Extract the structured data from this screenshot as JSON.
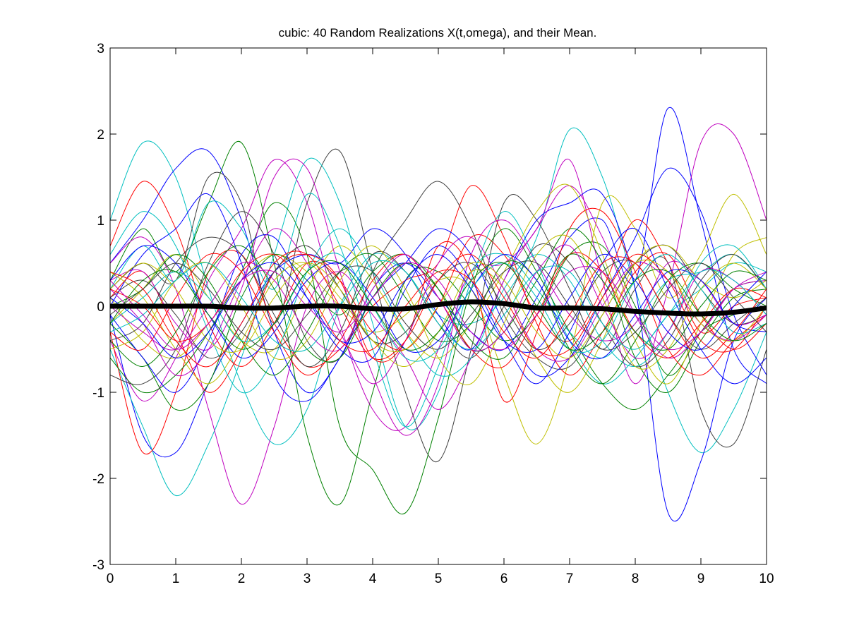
{
  "chart_data": {
    "type": "line",
    "title": "cubic: 40 Random Realizations X(t,omega), and their Mean.",
    "xlabel": "",
    "ylabel": "",
    "xlim": [
      0,
      10
    ],
    "ylim": [
      -3,
      3
    ],
    "x_ticks": [
      {
        "value": 0,
        "label": "0"
      },
      {
        "value": 1,
        "label": "1"
      },
      {
        "value": 2,
        "label": "2"
      },
      {
        "value": 3,
        "label": "3"
      },
      {
        "value": 4,
        "label": "4"
      },
      {
        "value": 5,
        "label": "5"
      },
      {
        "value": 6,
        "label": "6"
      },
      {
        "value": 7,
        "label": "7"
      },
      {
        "value": 8,
        "label": "8"
      },
      {
        "value": 9,
        "label": "9"
      },
      {
        "value": 10,
        "label": "10"
      }
    ],
    "y_ticks": [
      {
        "value": -3,
        "label": "-3"
      },
      {
        "value": -2,
        "label": "-2"
      },
      {
        "value": -1,
        "label": "-1"
      },
      {
        "value": 0,
        "label": "0"
      },
      {
        "value": 1,
        "label": "1"
      },
      {
        "value": 2,
        "label": "2"
      },
      {
        "value": 3,
        "label": "3"
      }
    ],
    "grid": false,
    "legend": "none",
    "x": [
      0,
      0.5,
      1,
      1.5,
      2,
      2.5,
      3,
      3.5,
      4,
      4.5,
      5,
      5.5,
      6,
      6.5,
      7,
      7.5,
      8,
      8.5,
      9,
      9.5,
      10
    ],
    "series": [
      {
        "color": "#00bfbf",
        "values": [
          1.0,
          1.9,
          1.5,
          0.2,
          -0.9,
          -1.6,
          -1.2,
          0.0,
          0.6,
          0.4,
          -0.1,
          -0.2,
          0.1,
          0.8,
          2.05,
          1.5,
          0.2,
          -1.0,
          -1.7,
          -1.2,
          -0.3
        ]
      },
      {
        "color": "#0000ff",
        "values": [
          0.5,
          1.0,
          1.6,
          1.8,
          1.0,
          -0.3,
          -1.0,
          -0.6,
          0.2,
          0.5,
          0.1,
          -0.3,
          -0.5,
          0.1,
          0.8,
          1.0,
          0.3,
          2.3,
          1.0,
          -0.5,
          -0.9
        ]
      },
      {
        "color": "#ff0000",
        "values": [
          0.7,
          1.45,
          0.9,
          -0.2,
          -0.7,
          -0.2,
          0.5,
          0.3,
          -0.3,
          -0.5,
          0.0,
          0.8,
          0.6,
          -0.1,
          -0.4,
          0.2,
          1.0,
          0.5,
          -0.3,
          0.0,
          0.1
        ]
      },
      {
        "color": "#008000",
        "values": [
          0.3,
          0.9,
          0.4,
          1.2,
          1.9,
          0.5,
          -1.5,
          -2.3,
          -1.0,
          0.3,
          0.4,
          0.0,
          -0.4,
          -0.1,
          0.6,
          0.7,
          0.0,
          -0.8,
          -0.3,
          0.2,
          0.3
        ]
      },
      {
        "color": "#bf00bf",
        "values": [
          -0.4,
          -1.1,
          -0.6,
          0.3,
          0.9,
          1.7,
          1.2,
          -0.2,
          -1.2,
          -1.4,
          -0.5,
          0.4,
          0.5,
          0.9,
          1.7,
          0.3,
          -0.9,
          0.2,
          1.9,
          2.0,
          1.0
        ]
      },
      {
        "color": "#bfbf00",
        "values": [
          0.1,
          -0.4,
          -0.6,
          -0.2,
          0.3,
          0.6,
          0.4,
          0.0,
          -0.3,
          -0.1,
          0.3,
          0.2,
          -0.8,
          -1.6,
          -0.6,
          1.2,
          0.9,
          0.1,
          0.6,
          1.3,
          0.6
        ]
      },
      {
        "color": "#404040",
        "values": [
          0.2,
          0.5,
          0.3,
          1.5,
          1.2,
          -0.2,
          1.2,
          1.8,
          0.4,
          -1.0,
          -1.8,
          -0.5,
          1.2,
          1.0,
          0.2,
          -0.5,
          0.2,
          0.5,
          -1.2,
          -1.6,
          -0.5
        ]
      },
      {
        "color": "#0000ff",
        "values": [
          -0.1,
          -1.5,
          -1.7,
          -0.9,
          -0.2,
          0.4,
          0.6,
          0.5,
          0.9,
          0.6,
          -0.1,
          -0.5,
          0.3,
          1.0,
          1.2,
          1.3,
          0.2,
          -2.4,
          -1.8,
          -0.4,
          0.1
        ]
      },
      {
        "color": "#00bfbf",
        "values": [
          -0.5,
          -1.4,
          -2.2,
          -1.6,
          -0.6,
          0.6,
          1.7,
          1.2,
          -0.2,
          -1.4,
          -1.0,
          0.3,
          1.1,
          0.5,
          -0.4,
          -0.9,
          -0.6,
          -0.1,
          0.2,
          0.5,
          0.4
        ]
      },
      {
        "color": "#ff0000",
        "values": [
          -0.3,
          -1.7,
          -1.0,
          0.4,
          0.6,
          -0.2,
          -0.7,
          -0.5,
          0.0,
          0.3,
          0.5,
          1.4,
          0.8,
          -0.2,
          -0.8,
          -0.3,
          0.4,
          0.6,
          -0.1,
          -0.5,
          -0.2
        ]
      },
      {
        "color": "#008000",
        "values": [
          -0.6,
          -1.0,
          -0.8,
          -0.3,
          0.4,
          1.2,
          0.6,
          -1.4,
          -1.9,
          -2.4,
          -1.3,
          0.2,
          0.9,
          0.4,
          -0.3,
          -0.9,
          -1.2,
          -0.8,
          -0.3,
          -0.1,
          0.0
        ]
      },
      {
        "color": "#bf00bf",
        "values": [
          0.5,
          0.8,
          0.2,
          -1.2,
          -2.3,
          -1.4,
          0.0,
          0.4,
          -0.1,
          -0.6,
          -1.2,
          -0.6,
          0.3,
          0.9,
          1.4,
          0.8,
          -0.1,
          -0.6,
          -0.3,
          0.2,
          0.3
        ]
      },
      {
        "color": "#bfbf00",
        "values": [
          -0.2,
          0.2,
          0.6,
          0.1,
          -0.4,
          -0.5,
          0.2,
          0.7,
          0.3,
          -0.3,
          -0.6,
          -0.2,
          0.4,
          1.1,
          1.4,
          0.6,
          -0.4,
          -0.9,
          -0.2,
          0.6,
          0.8
        ]
      },
      {
        "color": "#404040",
        "values": [
          -0.8,
          -0.9,
          -0.5,
          0.5,
          1.1,
          0.6,
          -0.4,
          -0.6,
          0.4,
          1.0,
          1.45,
          0.9,
          -0.1,
          -0.6,
          -0.7,
          -0.1,
          0.5,
          0.7,
          0.2,
          -0.2,
          -0.1
        ]
      },
      {
        "color": "#0000ff",
        "values": [
          0.0,
          0.6,
          0.9,
          1.3,
          0.5,
          -0.8,
          -1.1,
          -0.6,
          0.1,
          0.5,
          0.9,
          0.6,
          -0.2,
          -0.8,
          -0.6,
          0.1,
          0.8,
          1.6,
          1.1,
          -0.1,
          -0.8
        ]
      },
      {
        "color": "#00bfbf",
        "values": [
          0.2,
          0.7,
          0.3,
          1.2,
          0.9,
          0.2,
          1.3,
          0.7,
          -0.5,
          -1.4,
          -0.7,
          0.4,
          0.6,
          0.2,
          -0.3,
          -0.6,
          -0.2,
          0.3,
          0.4,
          0.6,
          0.2
        ]
      },
      {
        "color": "#ff0000",
        "values": [
          0.1,
          0.4,
          -0.3,
          -1.0,
          -0.5,
          0.4,
          0.6,
          0.3,
          -0.6,
          -0.4,
          0.7,
          0.4,
          -1.1,
          -0.3,
          0.9,
          1.1,
          0.4,
          -0.5,
          -0.8,
          -0.4,
          -0.1
        ]
      },
      {
        "color": "#008000",
        "values": [
          -0.2,
          -0.6,
          -1.2,
          -0.9,
          0.1,
          0.6,
          0.3,
          -0.1,
          0.4,
          0.6,
          0.2,
          -0.5,
          -0.3,
          0.3,
          0.9,
          0.5,
          -0.6,
          -1.0,
          -0.4,
          0.1,
          0.2
        ]
      },
      {
        "color": "#bf00bf",
        "values": [
          0.3,
          0.4,
          -0.2,
          -0.5,
          0.2,
          1.5,
          1.6,
          0.4,
          -0.8,
          -1.5,
          -0.9,
          0.6,
          1.0,
          0.5,
          -0.1,
          -0.4,
          -0.2,
          0.5,
          0.3,
          -0.2,
          -0.1
        ]
      },
      {
        "color": "#bfbf00",
        "values": [
          0.4,
          0.1,
          -0.5,
          -0.9,
          -0.4,
          0.3,
          0.5,
          0.1,
          -0.4,
          -0.7,
          -0.3,
          0.4,
          0.2,
          -0.6,
          -1.0,
          -0.4,
          0.5,
          0.7,
          0.3,
          0.1,
          0.3
        ]
      },
      {
        "color": "#404040",
        "values": [
          -0.4,
          -0.2,
          0.5,
          0.8,
          0.6,
          -0.1,
          -0.7,
          -0.3,
          0.6,
          0.4,
          -0.2,
          -0.6,
          0.0,
          0.7,
          0.5,
          -0.2,
          -0.7,
          -0.4,
          0.3,
          0.6,
          0.2
        ]
      },
      {
        "color": "#0000ff",
        "values": [
          -0.1,
          -0.6,
          -1.0,
          -0.4,
          0.6,
          0.8,
          0.1,
          -0.5,
          -0.6,
          0.2,
          0.7,
          0.3,
          -0.4,
          -0.9,
          -0.3,
          0.5,
          0.9,
          0.2,
          -0.5,
          -0.9,
          -0.6
        ]
      },
      {
        "color": "#00bfbf",
        "values": [
          0.6,
          1.1,
          0.7,
          -0.3,
          -1.0,
          -0.6,
          0.4,
          0.9,
          0.4,
          -0.3,
          -0.8,
          -0.6,
          0.2,
          0.6,
          0.3,
          -0.4,
          -0.7,
          -0.3,
          0.5,
          0.7,
          0.2
        ]
      },
      {
        "color": "#ff0000",
        "values": [
          -0.3,
          -0.5,
          0.1,
          0.6,
          0.4,
          -0.3,
          -0.8,
          -0.4,
          0.3,
          0.6,
          0.1,
          -0.5,
          -0.7,
          -0.1,
          0.6,
          0.4,
          -0.3,
          -0.6,
          -0.2,
          0.2,
          0.1
        ]
      },
      {
        "color": "#008000",
        "values": [
          0.0,
          0.2,
          0.6,
          0.3,
          -0.4,
          -0.8,
          -0.3,
          0.4,
          0.6,
          0.1,
          -0.4,
          -0.2,
          0.5,
          0.3,
          -0.5,
          -0.9,
          -0.4,
          0.3,
          0.5,
          0.2,
          0.0
        ]
      },
      {
        "color": "#bf00bf",
        "values": [
          0.2,
          -0.2,
          -0.8,
          -0.5,
          0.3,
          0.9,
          0.5,
          -0.3,
          -0.9,
          -0.4,
          0.5,
          0.8,
          0.2,
          -0.5,
          -0.6,
          0.0,
          0.5,
          0.3,
          -0.2,
          -0.4,
          -0.1
        ]
      },
      {
        "color": "#bfbf00",
        "values": [
          -0.5,
          -0.3,
          0.3,
          0.5,
          0.0,
          -0.6,
          -0.4,
          0.3,
          0.7,
          0.2,
          -0.6,
          -0.9,
          -0.2,
          0.6,
          0.8,
          0.1,
          -0.7,
          -0.5,
          0.2,
          0.5,
          0.2
        ]
      },
      {
        "color": "#404040",
        "values": [
          0.1,
          0.3,
          -0.1,
          -0.6,
          -0.3,
          0.4,
          0.7,
          0.2,
          -0.4,
          -0.3,
          0.3,
          0.5,
          0.0,
          -0.5,
          -0.2,
          0.4,
          0.5,
          -0.1,
          -0.5,
          -0.2,
          0.1
        ]
      },
      {
        "color": "#0000ff",
        "values": [
          0.3,
          0.7,
          0.5,
          -0.1,
          -0.6,
          -0.3,
          0.3,
          0.5,
          0.1,
          -0.5,
          -0.4,
          0.2,
          0.6,
          0.3,
          -0.4,
          -0.6,
          -0.1,
          0.4,
          0.3,
          -0.2,
          -0.3
        ]
      },
      {
        "color": "#00bfbf",
        "values": [
          -0.2,
          0.1,
          0.4,
          0.1,
          -0.4,
          -0.2,
          0.4,
          0.6,
          0.0,
          -0.6,
          -0.5,
          0.2,
          0.5,
          0.1,
          -0.5,
          -0.4,
          0.3,
          0.6,
          0.2,
          -0.3,
          -0.2
        ]
      },
      {
        "color": "#ff0000",
        "values": [
          0.4,
          0.2,
          -0.4,
          -0.7,
          -0.2,
          0.5,
          0.6,
          0.0,
          -0.6,
          -0.4,
          0.3,
          0.6,
          0.1,
          -0.5,
          -0.5,
          0.1,
          0.6,
          0.3,
          -0.4,
          -0.5,
          0.0
        ]
      },
      {
        "color": "#008000",
        "values": [
          -0.4,
          -0.7,
          -0.3,
          0.4,
          0.7,
          0.2,
          -0.5,
          -0.6,
          0.1,
          0.5,
          0.2,
          -0.4,
          -0.6,
          0.0,
          0.6,
          0.3,
          -0.3,
          -0.5,
          0.0,
          0.4,
          0.3
        ]
      },
      {
        "color": "#bf00bf",
        "values": [
          0.0,
          -0.3,
          -0.5,
          0.0,
          0.5,
          0.3,
          -0.3,
          -0.5,
          0.2,
          0.6,
          0.1,
          -0.5,
          -0.3,
          0.4,
          0.7,
          0.0,
          -0.6,
          -0.3,
          0.4,
          0.3,
          -0.1
        ]
      },
      {
        "color": "#bfbf00",
        "values": [
          0.2,
          0.5,
          0.2,
          -0.4,
          -0.5,
          0.1,
          0.5,
          0.2,
          -0.4,
          -0.5,
          0.0,
          0.5,
          0.3,
          -0.3,
          -0.6,
          -0.1,
          0.5,
          0.4,
          -0.2,
          -0.4,
          0.0
        ]
      },
      {
        "color": "#404040",
        "values": [
          -0.1,
          0.2,
          0.5,
          0.2,
          -0.3,
          -0.5,
          -0.1,
          0.4,
          0.4,
          -0.2,
          -0.5,
          -0.1,
          0.4,
          0.5,
          0.0,
          -0.5,
          -0.3,
          0.2,
          0.5,
          0.1,
          -0.3
        ]
      },
      {
        "color": "#0000ff",
        "values": [
          0.1,
          -0.2,
          -0.6,
          -0.3,
          0.3,
          0.5,
          0.1,
          -0.4,
          -0.3,
          0.3,
          0.6,
          0.2,
          -0.4,
          -0.5,
          0.1,
          0.6,
          0.3,
          -0.3,
          -0.5,
          0.0,
          0.4
        ]
      },
      {
        "color": "#00bfbf",
        "values": [
          -0.3,
          -0.1,
          0.3,
          0.5,
          0.1,
          -0.4,
          -0.5,
          0.0,
          0.5,
          0.4,
          -0.2,
          -0.5,
          -0.1,
          0.4,
          0.4,
          -0.2,
          -0.5,
          -0.1,
          0.4,
          0.3,
          -0.1
        ]
      },
      {
        "color": "#ff0000",
        "values": [
          0.2,
          0.0,
          -0.4,
          -0.2,
          0.4,
          0.6,
          0.2,
          -0.4,
          -0.5,
          0.0,
          0.4,
          0.3,
          -0.3,
          -0.6,
          -0.1,
          0.5,
          0.5,
          -0.1,
          -0.6,
          -0.3,
          0.2
        ]
      },
      {
        "color": "#008000",
        "values": [
          -0.2,
          0.3,
          0.4,
          -0.1,
          -0.5,
          -0.2,
          0.4,
          0.5,
          0.0,
          -0.5,
          -0.3,
          0.3,
          0.5,
          0.0,
          -0.5,
          -0.3,
          0.3,
          0.4,
          -0.1,
          -0.4,
          -0.2
        ]
      },
      {
        "color": "#bf00bf",
        "values": [
          0.3,
          -0.1,
          -0.5,
          -0.2,
          0.3,
          0.4,
          0.0,
          -0.3,
          0.1,
          0.5,
          0.3,
          -0.3,
          -0.5,
          -0.1,
          0.4,
          0.4,
          -0.1,
          -0.5,
          -0.3,
          0.2,
          0.4
        ]
      }
    ],
    "mean": {
      "color": "#000000",
      "values": [
        0.0,
        0.0,
        0.0,
        0.0,
        -0.02,
        -0.02,
        0.0,
        0.0,
        -0.03,
        -0.03,
        0.02,
        0.05,
        0.03,
        -0.02,
        -0.02,
        -0.03,
        -0.06,
        -0.08,
        -0.09,
        -0.07,
        -0.02
      ]
    }
  }
}
